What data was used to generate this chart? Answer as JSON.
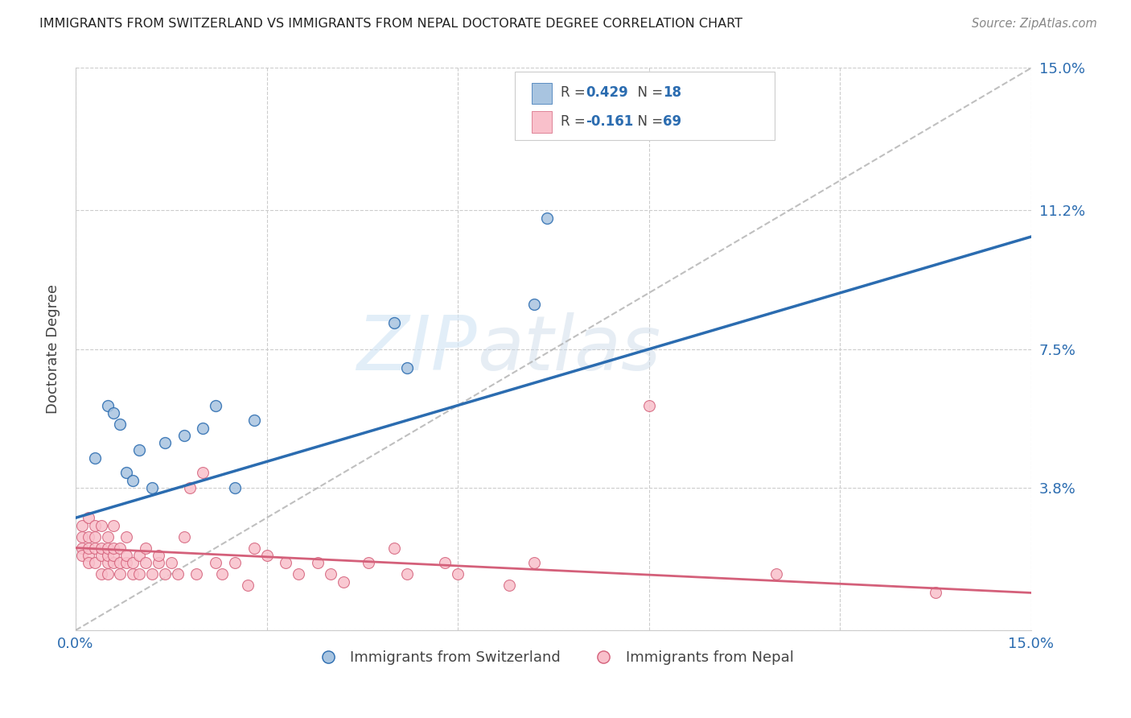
{
  "title": "IMMIGRANTS FROM SWITZERLAND VS IMMIGRANTS FROM NEPAL DOCTORATE DEGREE CORRELATION CHART",
  "source": "Source: ZipAtlas.com",
  "ylabel": "Doctorate Degree",
  "xlim": [
    0.0,
    0.15
  ],
  "ylim": [
    0.0,
    0.15
  ],
  "y_tick_positions": [
    0.0,
    0.038,
    0.075,
    0.112,
    0.15
  ],
  "y_tick_labels": [
    "",
    "3.8%",
    "7.5%",
    "11.2%",
    "15.0%"
  ],
  "grid_color": "#cccccc",
  "background_color": "#ffffff",
  "watermark_zip": "ZIP",
  "watermark_atlas": "atlas",
  "swiss_R": 0.429,
  "swiss_N": 18,
  "nepal_R": -0.161,
  "nepal_N": 69,
  "swiss_color": "#a8c4e0",
  "swiss_line_color": "#2b6cb0",
  "nepal_color": "#f9c0cb",
  "nepal_line_color": "#d4607a",
  "diag_color": "#b0b0b0",
  "swiss_x": [
    0.003,
    0.005,
    0.006,
    0.007,
    0.008,
    0.009,
    0.01,
    0.012,
    0.014,
    0.017,
    0.02,
    0.022,
    0.025,
    0.028,
    0.05,
    0.052,
    0.072,
    0.074
  ],
  "swiss_y": [
    0.046,
    0.06,
    0.058,
    0.055,
    0.042,
    0.04,
    0.048,
    0.038,
    0.05,
    0.052,
    0.054,
    0.06,
    0.038,
    0.056,
    0.082,
    0.07,
    0.087,
    0.11
  ],
  "nepal_x": [
    0.001,
    0.001,
    0.001,
    0.001,
    0.002,
    0.002,
    0.002,
    0.002,
    0.002,
    0.003,
    0.003,
    0.003,
    0.003,
    0.004,
    0.004,
    0.004,
    0.004,
    0.005,
    0.005,
    0.005,
    0.005,
    0.005,
    0.006,
    0.006,
    0.006,
    0.006,
    0.007,
    0.007,
    0.007,
    0.008,
    0.008,
    0.008,
    0.009,
    0.009,
    0.01,
    0.01,
    0.011,
    0.011,
    0.012,
    0.013,
    0.013,
    0.014,
    0.015,
    0.016,
    0.017,
    0.018,
    0.019,
    0.02,
    0.022,
    0.023,
    0.025,
    0.027,
    0.028,
    0.03,
    0.033,
    0.035,
    0.038,
    0.04,
    0.042,
    0.046,
    0.05,
    0.052,
    0.058,
    0.06,
    0.068,
    0.072,
    0.09,
    0.11,
    0.135
  ],
  "nepal_y": [
    0.022,
    0.025,
    0.028,
    0.02,
    0.02,
    0.018,
    0.022,
    0.025,
    0.03,
    0.018,
    0.022,
    0.025,
    0.028,
    0.015,
    0.02,
    0.022,
    0.028,
    0.015,
    0.018,
    0.02,
    0.022,
    0.025,
    0.018,
    0.02,
    0.022,
    0.028,
    0.015,
    0.018,
    0.022,
    0.018,
    0.02,
    0.025,
    0.015,
    0.018,
    0.015,
    0.02,
    0.018,
    0.022,
    0.015,
    0.018,
    0.02,
    0.015,
    0.018,
    0.015,
    0.025,
    0.038,
    0.015,
    0.042,
    0.018,
    0.015,
    0.018,
    0.012,
    0.022,
    0.02,
    0.018,
    0.015,
    0.018,
    0.015,
    0.013,
    0.018,
    0.022,
    0.015,
    0.018,
    0.015,
    0.012,
    0.018,
    0.06,
    0.015,
    0.01
  ]
}
